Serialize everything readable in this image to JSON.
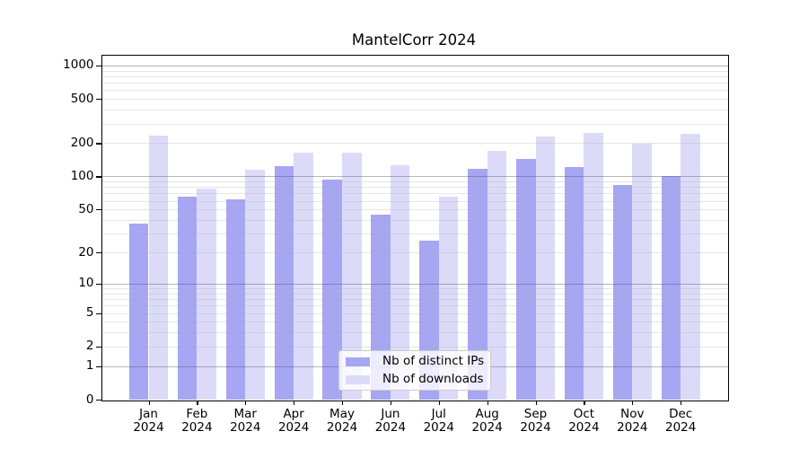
{
  "chart_data": {
    "type": "bar",
    "title": "MantelCorr 2024",
    "categories": [
      "Jan",
      "Feb",
      "Mar",
      "Apr",
      "May",
      "Jun",
      "Jul",
      "Aug",
      "Sep",
      "Oct",
      "Nov",
      "Dec"
    ],
    "category_year": "2024",
    "series": [
      {
        "name": "Nb of distinct IPs",
        "color": "#a6a6f3",
        "values": [
          37,
          65,
          62,
          124,
          94,
          45,
          26,
          117,
          145,
          122,
          83,
          101
        ]
      },
      {
        "name": "Nb of downloads",
        "color": "#dbdbf9",
        "values": [
          236,
          78,
          116,
          165,
          165,
          127,
          65,
          170,
          229,
          247,
          198,
          243
        ]
      }
    ],
    "xlabel": "",
    "ylabel": "",
    "yscale": "log1p",
    "ylim": [
      0,
      1250
    ],
    "yticks": [
      0,
      1,
      2,
      5,
      10,
      20,
      50,
      100,
      200,
      500,
      1000
    ],
    "major_gridlines": [
      1,
      10,
      100,
      1000
    ],
    "minor_grid_multiples": [
      2,
      3,
      4,
      5,
      6,
      7,
      8,
      9
    ],
    "grid": true,
    "legend_position": "lower center"
  }
}
